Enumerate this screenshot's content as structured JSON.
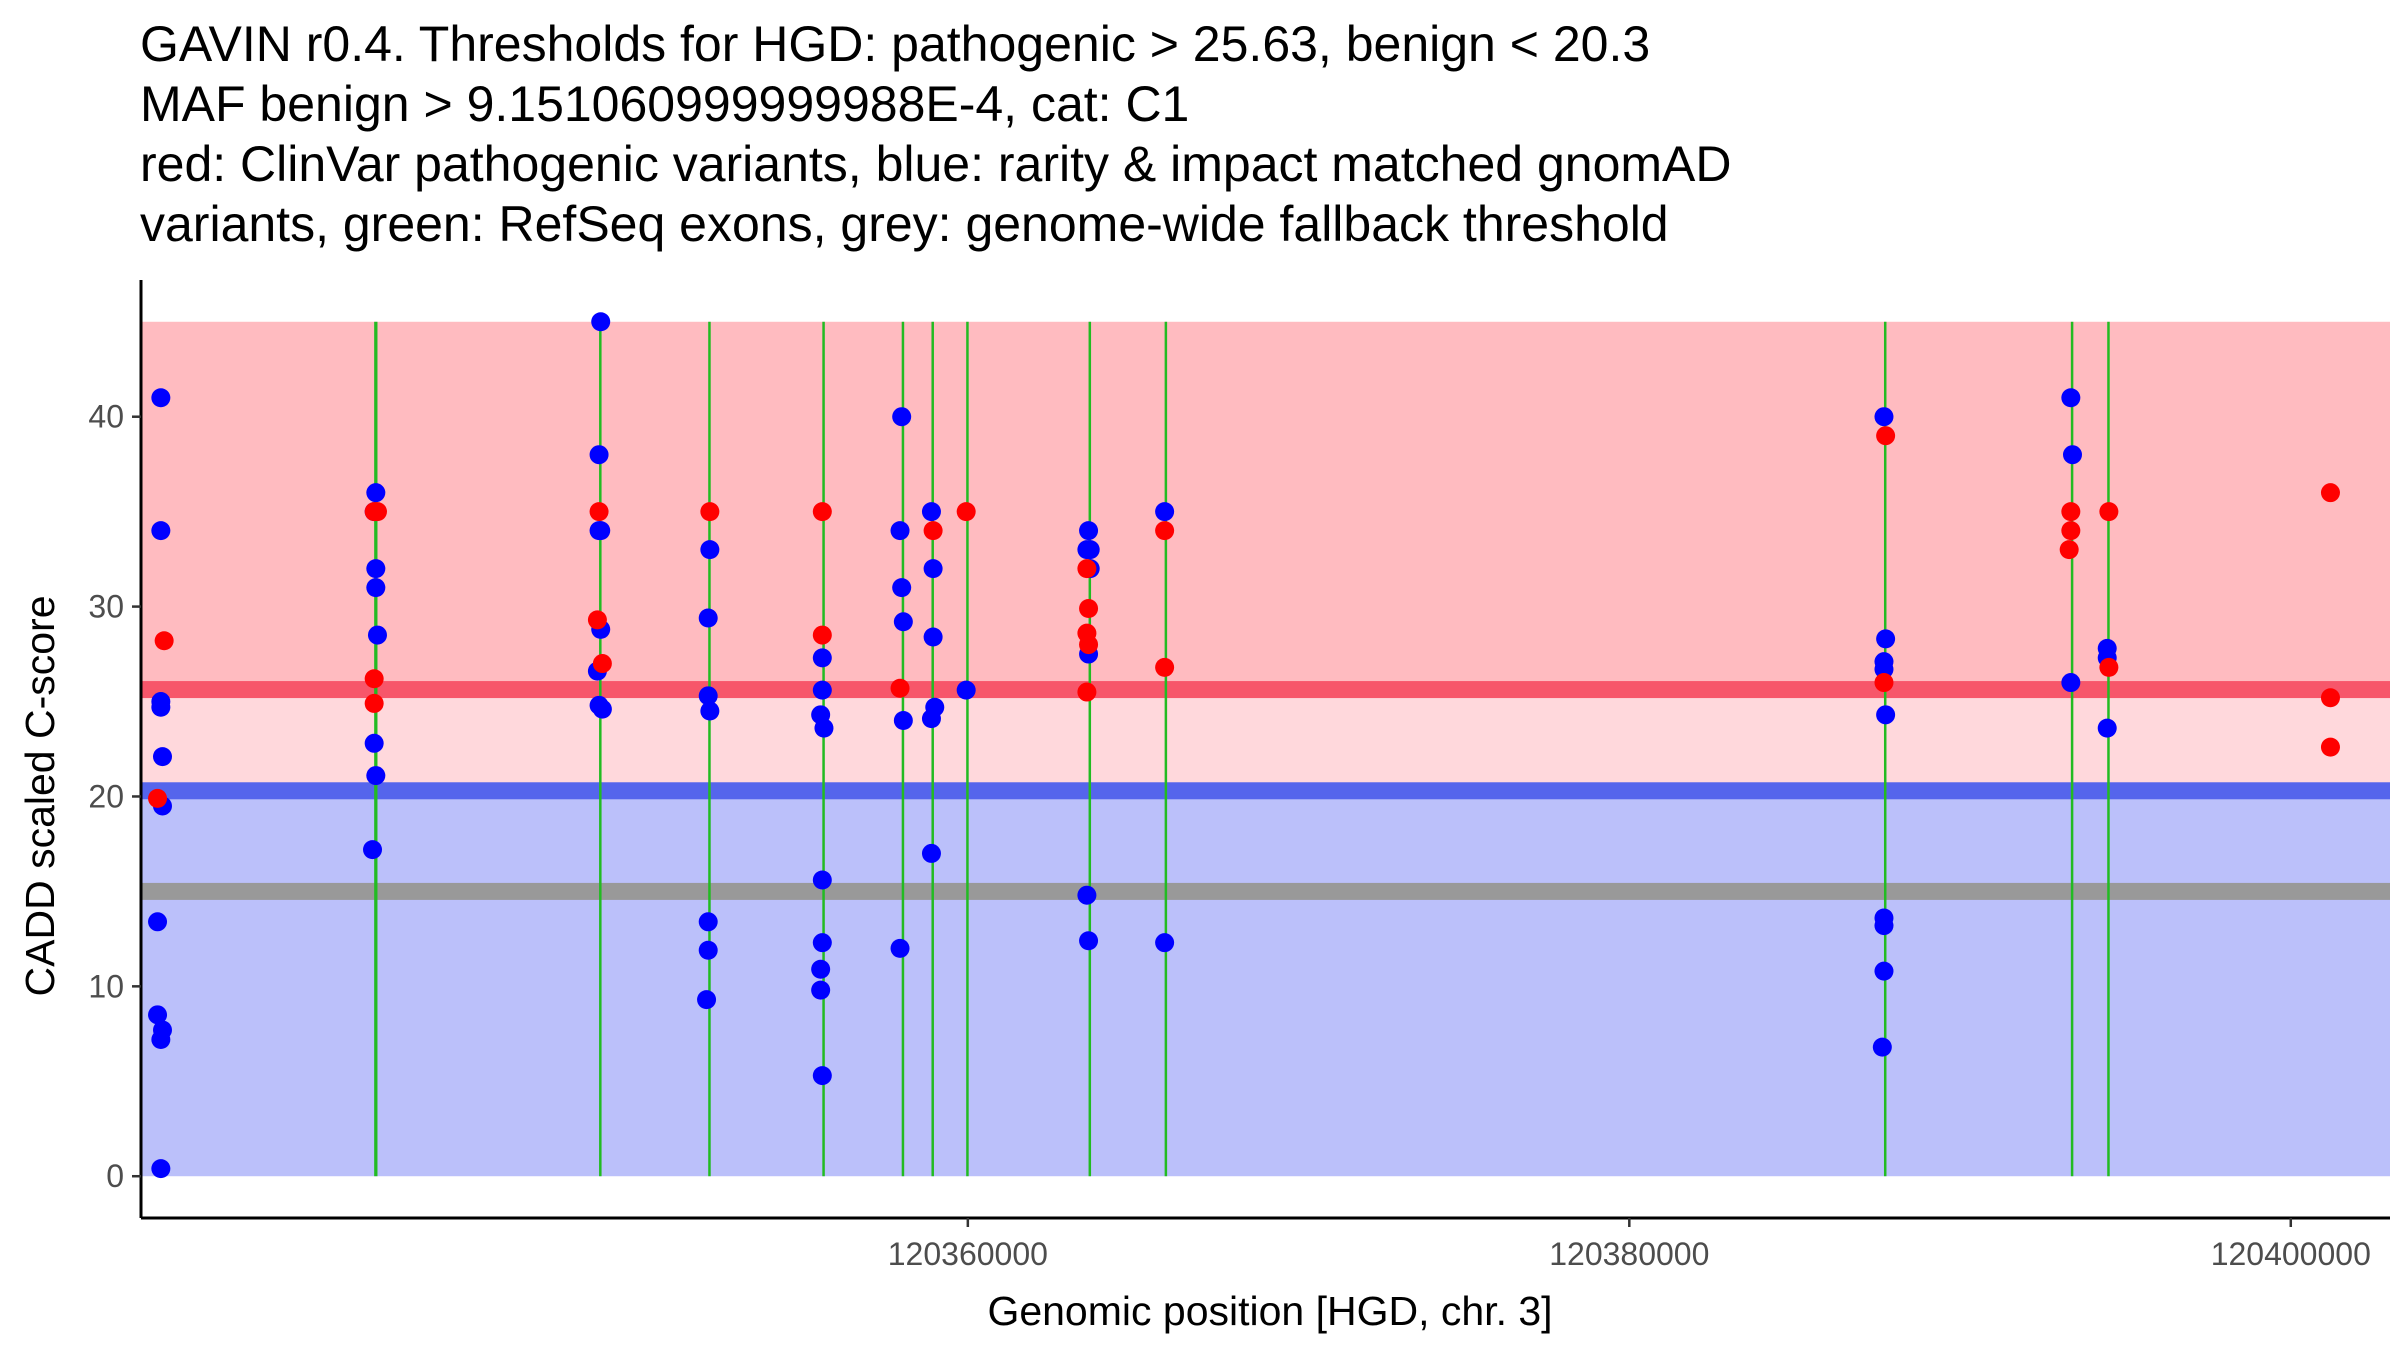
{
  "chart_data": {
    "type": "scatter",
    "title": "GAVIN r0.4. Thresholds for HGD: pathogenic > 25.63, benign < 20.3",
    "title_lines": [
      "GAVIN r0.4. Thresholds for HGD: pathogenic > 25.63, benign < 20.3",
      "MAF benign > 9.151060999999988E-4, cat: C1",
      "red: ClinVar pathogenic variants, blue: rarity & impact matched gnomAD",
      "variants, green: RefSeq exons, grey: genome-wide fallback threshold"
    ],
    "xlabel": "Genomic position [HGD, chr. 3]",
    "ylabel": "CADD scaled C-score",
    "xlim": [
      120335000,
      120403000
    ],
    "ylim": [
      -2.2,
      47.2
    ],
    "xticks": [
      120360000,
      120380000,
      120400000
    ],
    "xtick_labels": [
      "120360000",
      "120380000",
      "120400000"
    ],
    "yticks": [
      0,
      10,
      20,
      30,
      40
    ],
    "ytick_labels": [
      "0",
      "10",
      "20",
      "30",
      "40"
    ],
    "grid": false,
    "colors": {
      "pathogenic_zone": "#ffbbc0",
      "middle_zone": "#ffd8dc",
      "benign_zone": "#bbc0fa",
      "pathogenic_line": "#f7566a",
      "benign_line": "#5565ec",
      "fallback_line": "#999999",
      "exon": "#22bb22",
      "clinvar": "#ff0000",
      "gnomad": "#0000ff"
    },
    "regions": [
      {
        "name": "pathogenic",
        "y0": 25.63,
        "y1": 45
      },
      {
        "name": "uncertain",
        "y0": 20.3,
        "y1": 25.63
      },
      {
        "name": "benign",
        "y0": 0,
        "y1": 20.3
      }
    ],
    "thresholds": {
      "pathogenic": 25.63,
      "benign": 20.3,
      "fallback": 15.0
    },
    "exons": [
      {
        "start": 120342050,
        "end": 120342150
      },
      {
        "start": 120348850,
        "end": 120348900
      },
      {
        "start": 120352150,
        "end": 120352200
      },
      {
        "start": 120355600,
        "end": 120355650
      },
      {
        "start": 120358000,
        "end": 120358050
      },
      {
        "start": 120358900,
        "end": 120358950
      },
      {
        "start": 120359950,
        "end": 120359960
      },
      {
        "start": 120363650,
        "end": 120363700
      },
      {
        "start": 120365950,
        "end": 120365980
      },
      {
        "start": 120387700,
        "end": 120387750
      },
      {
        "start": 120393350,
        "end": 120393400
      },
      {
        "start": 120394450,
        "end": 120394500
      }
    ],
    "series": [
      {
        "name": "rarity & impact matched gnomAD variants",
        "color": "#0000ff",
        "points": [
          [
            120335600,
            41
          ],
          [
            120335600,
            34
          ],
          [
            120335600,
            25
          ],
          [
            120335600,
            24.7
          ],
          [
            120335650,
            22.1
          ],
          [
            120335650,
            19.5
          ],
          [
            120335500,
            13.4
          ],
          [
            120335500,
            8.5
          ],
          [
            120335650,
            7.7
          ],
          [
            120335600,
            7.2
          ],
          [
            120335600,
            0.4
          ],
          [
            120342050,
            35
          ],
          [
            120342100,
            36
          ],
          [
            120342100,
            32
          ],
          [
            120342100,
            31
          ],
          [
            120342150,
            28.5
          ],
          [
            120342050,
            22.8
          ],
          [
            120342100,
            21.1
          ],
          [
            120342000,
            17.2
          ],
          [
            120348900,
            45
          ],
          [
            120348850,
            38
          ],
          [
            120348850,
            34
          ],
          [
            120348900,
            34
          ],
          [
            120348900,
            28.8
          ],
          [
            120348800,
            26.6
          ],
          [
            120348850,
            24.8
          ],
          [
            120348950,
            24.6
          ],
          [
            120352200,
            33
          ],
          [
            120352150,
            29.4
          ],
          [
            120352150,
            25.3
          ],
          [
            120352200,
            24.5
          ],
          [
            120352150,
            13.4
          ],
          [
            120352150,
            11.9
          ],
          [
            120352100,
            9.3
          ],
          [
            120355600,
            27.3
          ],
          [
            120355600,
            25.6
          ],
          [
            120355550,
            24.3
          ],
          [
            120355650,
            23.6
          ],
          [
            120355600,
            15.6
          ],
          [
            120355600,
            12.3
          ],
          [
            120355550,
            10.9
          ],
          [
            120355550,
            9.8
          ],
          [
            120355600,
            5.3
          ],
          [
            120358000,
            40
          ],
          [
            120357950,
            34
          ],
          [
            120358000,
            31
          ],
          [
            120358050,
            29.2
          ],
          [
            120358050,
            24
          ],
          [
            120357950,
            12
          ],
          [
            120358900,
            35
          ],
          [
            120358950,
            32
          ],
          [
            120358950,
            28.4
          ],
          [
            120359000,
            24.7
          ],
          [
            120358900,
            24.1
          ],
          [
            120358900,
            17
          ],
          [
            120359950,
            25.6
          ],
          [
            120363650,
            34
          ],
          [
            120363600,
            33
          ],
          [
            120363700,
            33
          ],
          [
            120363700,
            32
          ],
          [
            120363650,
            27.5
          ],
          [
            120363600,
            14.8
          ],
          [
            120363650,
            12.4
          ],
          [
            120365950,
            35
          ],
          [
            120365950,
            12.3
          ],
          [
            120387700,
            40
          ],
          [
            120387750,
            28.3
          ],
          [
            120387700,
            27.1
          ],
          [
            120387700,
            26.7
          ],
          [
            120387750,
            24.3
          ],
          [
            120387700,
            13.6
          ],
          [
            120387700,
            13.2
          ],
          [
            120387700,
            10.8
          ],
          [
            120387650,
            6.8
          ],
          [
            120393350,
            41
          ],
          [
            120393400,
            38
          ],
          [
            120393350,
            26
          ],
          [
            120394450,
            27.8
          ],
          [
            120394450,
            27.3
          ],
          [
            120394450,
            23.6
          ]
        ]
      },
      {
        "name": "ClinVar pathogenic variants",
        "color": "#ff0000",
        "points": [
          [
            120335700,
            28.2
          ],
          [
            120335500,
            19.9
          ],
          [
            120342050,
            35
          ],
          [
            120342150,
            35
          ],
          [
            120342050,
            26.2
          ],
          [
            120342050,
            24.9
          ],
          [
            120348850,
            35
          ],
          [
            120348800,
            29.3
          ],
          [
            120348950,
            27
          ],
          [
            120352200,
            35
          ],
          [
            120355600,
            35
          ],
          [
            120355600,
            28.5
          ],
          [
            120357950,
            25.7
          ],
          [
            120358950,
            34
          ],
          [
            120359950,
            35
          ],
          [
            120363600,
            32
          ],
          [
            120363650,
            29.9
          ],
          [
            120363600,
            28.6
          ],
          [
            120363650,
            28
          ],
          [
            120363600,
            25.5
          ],
          [
            120365950,
            34
          ],
          [
            120365950,
            26.8
          ],
          [
            120387750,
            39
          ],
          [
            120387700,
            26
          ],
          [
            120393350,
            35
          ],
          [
            120393350,
            34
          ],
          [
            120393300,
            33
          ],
          [
            120394500,
            35
          ],
          [
            120394500,
            26.8
          ],
          [
            120401200,
            36
          ],
          [
            120401200,
            25.2
          ],
          [
            120401200,
            22.6
          ]
        ]
      }
    ]
  }
}
